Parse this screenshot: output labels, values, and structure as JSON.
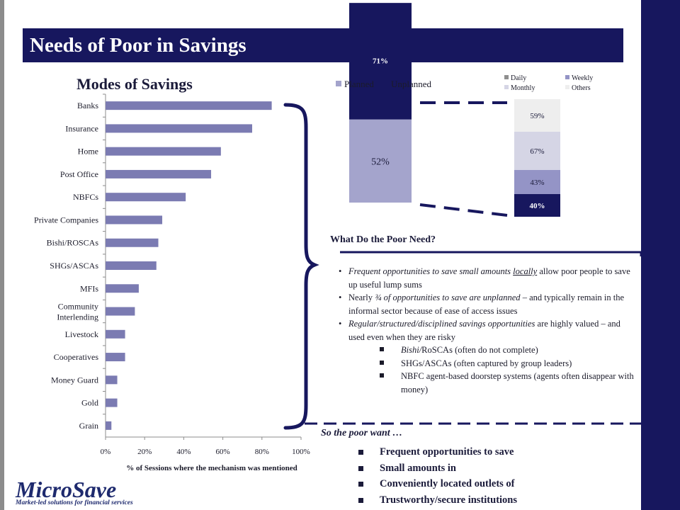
{
  "slide": {
    "title": "Needs of Poor in Savings",
    "bar_chart_title": "Modes of Savings",
    "needs_heading": "What Do the Poor Need?",
    "bullets": [
      {
        "italic": "Frequent opportunities to save small amounts ",
        "underline": "locally",
        "rest": " allow poor people to save up useful lump sums"
      },
      {
        "plain1": "Nearly ",
        "italic": "¾ of opportunities to save are unplanned",
        "rest": " – and typically remain in the informal sector because of ease of access issues"
      },
      {
        "italic": "Regular/structured/disciplined  savings opportunities",
        "rest": " are highly valued – and used even when they are risky"
      }
    ],
    "sub_bullets": [
      {
        "italic": "Bishi/",
        "rest": "RoSCAs (often do not complete)"
      },
      {
        "text": "SHGs/ASCAs (often captured by group leaders)"
      },
      {
        "text": "NBFC agent-based doorstep systems (agents often disappear with money)"
      }
    ],
    "wants_heading": "So the poor want …",
    "wants": [
      "Frequent opportunities to save",
      "Small amounts in",
      "Conveniently located outlets of",
      "Trustworthy/secure institutions"
    ],
    "logo": {
      "name": "MicroSave",
      "tagline": "Market-led solutions for financial services"
    },
    "colors": {
      "navy": "#17175e",
      "bar": "#7b7bb2",
      "daily": "#8f8f8f",
      "weekly": "#9494c6",
      "monthly": "#d5d5e5",
      "others": "#eeeeee",
      "planned": "#a4a4cc"
    }
  },
  "chart_data": [
    {
      "type": "bar",
      "orientation": "horizontal",
      "title": "Modes of Savings",
      "xlabel": "% of Sessions where the mechanism was mentioned",
      "xlim": [
        0,
        100
      ],
      "xticks": [
        "0%",
        "20%",
        "40%",
        "60%",
        "80%",
        "100%"
      ],
      "categories": [
        "Banks",
        "Insurance",
        "Home",
        "Post Office",
        "NBFCs",
        "Private Companies",
        "Bishi/ROSCAs",
        "SHGs/ASCAs",
        "MFIs",
        "Community Interlending",
        "Livestock",
        "Cooperatives",
        "Money Guard",
        "Gold",
        "Grain"
      ],
      "values": [
        85,
        75,
        59,
        54,
        41,
        29,
        27,
        26,
        17,
        15,
        10,
        10,
        6,
        6,
        3
      ]
    },
    {
      "type": "bar",
      "stacked": true,
      "legend": [
        "Planned",
        "Unplanned"
      ],
      "segments": [
        {
          "name": "Planned",
          "label": "52%",
          "value": 52
        },
        {
          "name": "Unplanned",
          "label": "71%",
          "value": 71
        }
      ]
    },
    {
      "type": "bar",
      "stacked": true,
      "legend": [
        "Daily",
        "Weekly",
        "Monthly",
        "Others"
      ],
      "segments": [
        {
          "name": "Daily",
          "label": "40%",
          "value": 40
        },
        {
          "name": "Weekly",
          "label": "43%",
          "value": 43
        },
        {
          "name": "Monthly",
          "label": "67%",
          "value": 67
        },
        {
          "name": "Others",
          "label": "59%",
          "value": 59
        }
      ]
    }
  ]
}
